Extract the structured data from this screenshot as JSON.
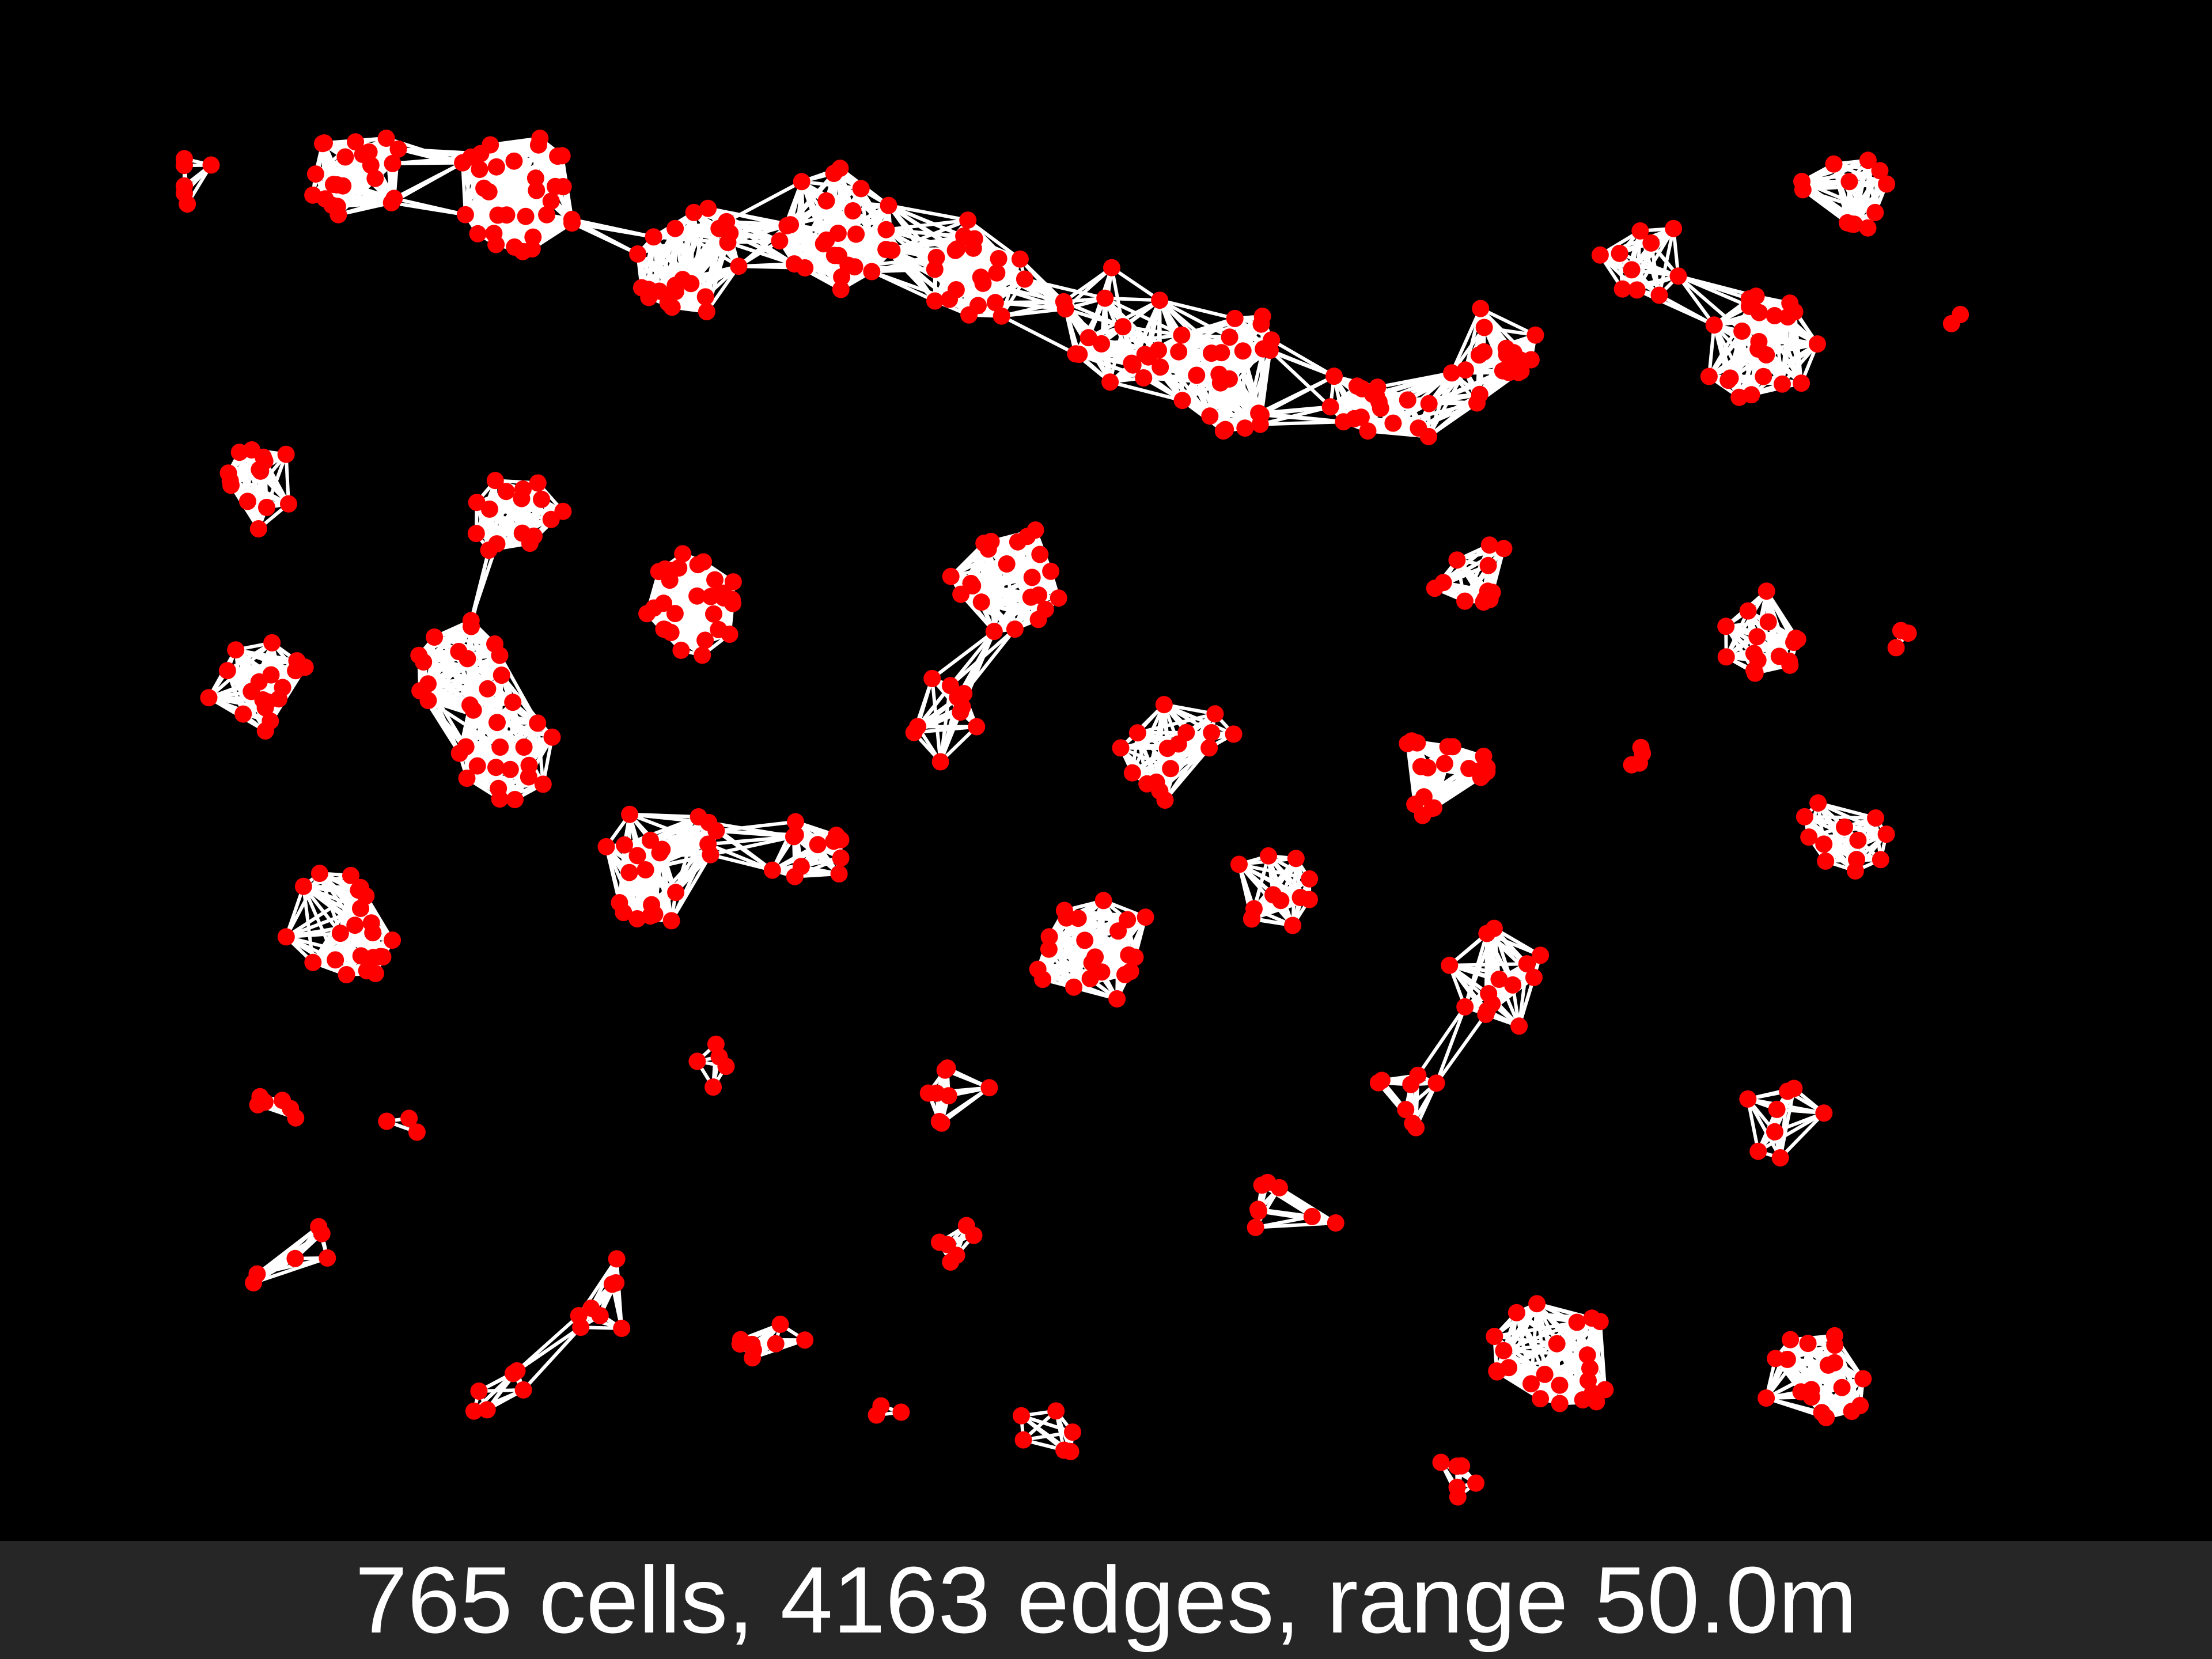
{
  "caption": {
    "text": "765 cells, 4163 edges, range 50.0m"
  },
  "graph": {
    "cell_count": 765,
    "edge_count": 4163,
    "range": "50.0m",
    "node_color": "#ff0000",
    "edge_color": "#ffffff",
    "background_color": "#000000",
    "caption_background": "#262626"
  }
}
